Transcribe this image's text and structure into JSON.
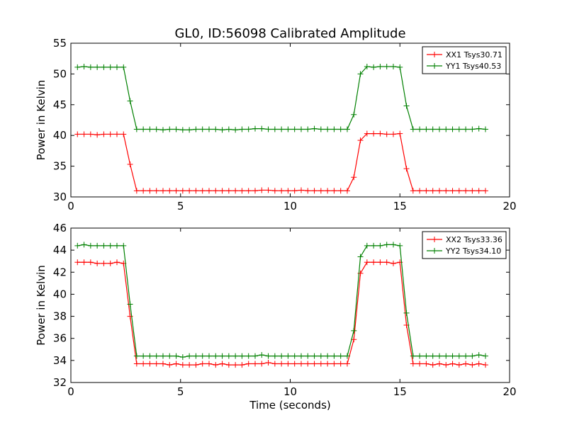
{
  "chart_data": [
    {
      "type": "line",
      "title": "GL0, ID:56098 Calibrated Amplitude",
      "xlabel": "",
      "ylabel": "Power in Kelvin",
      "xlim": [
        0,
        20
      ],
      "ylim": [
        30,
        55
      ],
      "xticks": [
        0,
        5,
        10,
        15,
        20
      ],
      "yticks": [
        30,
        35,
        40,
        45,
        50,
        55
      ],
      "legend": "top-right",
      "grid": false,
      "x": [
        0.3,
        0.6,
        0.9,
        1.2,
        1.5,
        1.8,
        2.1,
        2.4,
        2.7,
        3.0,
        3.3,
        3.6,
        3.9,
        4.2,
        4.5,
        4.8,
        5.1,
        5.4,
        5.7,
        6.0,
        6.3,
        6.6,
        6.9,
        7.2,
        7.5,
        7.8,
        8.1,
        8.4,
        8.7,
        9.0,
        9.3,
        9.6,
        9.9,
        10.2,
        10.5,
        10.8,
        11.1,
        11.4,
        11.7,
        12.0,
        12.3,
        12.6,
        12.9,
        13.2,
        13.5,
        13.8,
        14.1,
        14.4,
        14.7,
        15.0,
        15.3,
        15.6,
        15.9,
        16.2,
        16.5,
        16.8,
        17.1,
        17.4,
        17.7,
        18.0,
        18.3,
        18.6,
        18.9
      ],
      "series": [
        {
          "name": "XX1 Tsys30.71",
          "color": "#ff0000",
          "values": [
            40.2,
            40.2,
            40.2,
            40.1,
            40.2,
            40.2,
            40.2,
            40.2,
            35.3,
            31.0,
            31.0,
            31.0,
            31.0,
            31.0,
            31.0,
            31.0,
            31.0,
            31.0,
            31.0,
            31.0,
            31.0,
            31.0,
            31.0,
            31.0,
            31.0,
            31.0,
            31.0,
            31.0,
            31.1,
            31.1,
            31.0,
            31.0,
            31.0,
            31.0,
            31.1,
            31.0,
            31.0,
            31.0,
            31.0,
            31.0,
            31.0,
            31.0,
            33.2,
            39.2,
            40.3,
            40.3,
            40.3,
            40.2,
            40.2,
            40.3,
            34.6,
            31.0,
            31.0,
            31.0,
            31.0,
            31.0,
            31.0,
            31.0,
            31.0,
            31.0,
            31.0,
            31.0,
            31.0
          ]
        },
        {
          "name": "YY1 Tsys40.53",
          "color": "#008000",
          "values": [
            51.1,
            51.2,
            51.1,
            51.1,
            51.1,
            51.1,
            51.1,
            51.1,
            45.6,
            41.0,
            41.0,
            41.0,
            41.0,
            40.9,
            41.0,
            41.0,
            40.9,
            40.9,
            41.0,
            41.0,
            41.0,
            41.0,
            40.9,
            41.0,
            40.9,
            41.0,
            41.0,
            41.1,
            41.1,
            41.0,
            41.0,
            41.0,
            41.0,
            41.0,
            41.0,
            41.0,
            41.1,
            41.0,
            41.0,
            41.0,
            41.0,
            41.0,
            43.4,
            50.0,
            51.2,
            51.1,
            51.2,
            51.2,
            51.2,
            51.1,
            44.8,
            41.0,
            41.0,
            41.0,
            41.0,
            41.0,
            41.0,
            41.0,
            41.0,
            41.0,
            41.0,
            41.1,
            41.0
          ]
        }
      ]
    },
    {
      "type": "line",
      "title": "",
      "xlabel": "Time (seconds)",
      "ylabel": "Power in Kelvin",
      "xlim": [
        0,
        20
      ],
      "ylim": [
        32,
        46
      ],
      "xticks": [
        0,
        5,
        10,
        15,
        20
      ],
      "yticks": [
        32,
        34,
        36,
        38,
        40,
        42,
        44,
        46
      ],
      "legend": "top-right",
      "grid": false,
      "x": [
        0.3,
        0.6,
        0.9,
        1.2,
        1.5,
        1.8,
        2.1,
        2.4,
        2.7,
        3.0,
        3.3,
        3.6,
        3.9,
        4.2,
        4.5,
        4.8,
        5.1,
        5.4,
        5.7,
        6.0,
        6.3,
        6.6,
        6.9,
        7.2,
        7.5,
        7.8,
        8.1,
        8.4,
        8.7,
        9.0,
        9.3,
        9.6,
        9.9,
        10.2,
        10.5,
        10.8,
        11.1,
        11.4,
        11.7,
        12.0,
        12.3,
        12.6,
        12.9,
        13.2,
        13.5,
        13.8,
        14.1,
        14.4,
        14.7,
        15.0,
        15.3,
        15.6,
        15.9,
        16.2,
        16.5,
        16.8,
        17.1,
        17.4,
        17.7,
        18.0,
        18.3,
        18.6,
        18.9
      ],
      "series": [
        {
          "name": "XX2 Tsys33.36",
          "color": "#ff0000",
          "values": [
            42.9,
            42.9,
            42.9,
            42.8,
            42.8,
            42.8,
            42.9,
            42.8,
            38.0,
            33.7,
            33.7,
            33.7,
            33.7,
            33.7,
            33.6,
            33.7,
            33.6,
            33.6,
            33.6,
            33.7,
            33.7,
            33.6,
            33.7,
            33.6,
            33.6,
            33.6,
            33.7,
            33.7,
            33.7,
            33.8,
            33.7,
            33.7,
            33.7,
            33.7,
            33.7,
            33.7,
            33.7,
            33.7,
            33.7,
            33.7,
            33.7,
            33.7,
            35.9,
            41.9,
            42.9,
            42.9,
            42.9,
            42.9,
            42.8,
            42.9,
            37.2,
            33.7,
            33.7,
            33.7,
            33.6,
            33.7,
            33.6,
            33.7,
            33.6,
            33.7,
            33.6,
            33.7,
            33.6
          ]
        },
        {
          "name": "YY2 Tsys34.10",
          "color": "#008000",
          "values": [
            44.4,
            44.5,
            44.4,
            44.4,
            44.4,
            44.4,
            44.4,
            44.4,
            39.1,
            34.4,
            34.4,
            34.4,
            34.4,
            34.4,
            34.4,
            34.4,
            34.3,
            34.4,
            34.4,
            34.4,
            34.4,
            34.4,
            34.4,
            34.4,
            34.4,
            34.4,
            34.4,
            34.4,
            34.5,
            34.4,
            34.4,
            34.4,
            34.4,
            34.4,
            34.4,
            34.4,
            34.4,
            34.4,
            34.4,
            34.4,
            34.4,
            34.4,
            36.7,
            43.4,
            44.4,
            44.4,
            44.4,
            44.5,
            44.5,
            44.4,
            38.3,
            34.4,
            34.4,
            34.4,
            34.4,
            34.4,
            34.4,
            34.4,
            34.4,
            34.4,
            34.4,
            34.5,
            34.4
          ]
        }
      ]
    }
  ]
}
